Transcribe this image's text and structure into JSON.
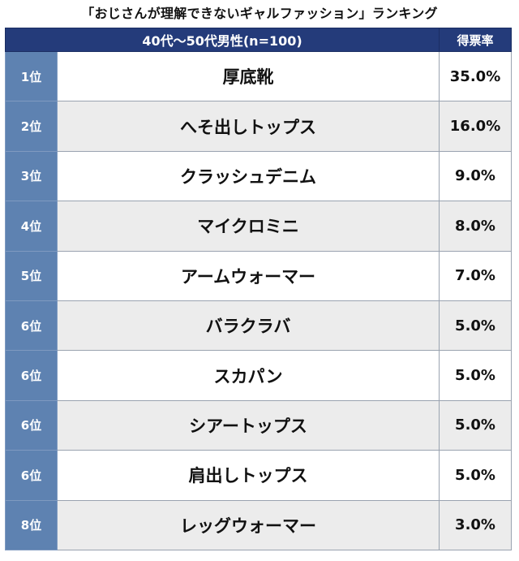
{
  "title": "「おじさんが理解できないギャルファッション」ランキング",
  "header": {
    "group_label": "40代〜50代男性(n=100)",
    "pct_label": "得票率"
  },
  "chart_data": {
    "type": "table",
    "columns": [
      "40代〜50代男性(n=100)",
      "得票率"
    ],
    "rows": [
      {
        "rank": "1位",
        "item": "厚底靴",
        "pct": "35.0%"
      },
      {
        "rank": "2位",
        "item": "へそ出しトップス",
        "pct": "16.0%"
      },
      {
        "rank": "3位",
        "item": "クラッシュデニム",
        "pct": "9.0%"
      },
      {
        "rank": "4位",
        "item": "マイクロミニ",
        "pct": "8.0%"
      },
      {
        "rank": "5位",
        "item": "アームウォーマー",
        "pct": "7.0%"
      },
      {
        "rank": "6位",
        "item": "バラクラバ",
        "pct": "5.0%"
      },
      {
        "rank": "6位",
        "item": "スカパン",
        "pct": "5.0%"
      },
      {
        "rank": "6位",
        "item": "シアートップス",
        "pct": "5.0%"
      },
      {
        "rank": "6位",
        "item": "肩出しトップス",
        "pct": "5.0%"
      },
      {
        "rank": "8位",
        "item": "レッグウォーマー",
        "pct": "3.0%"
      }
    ]
  },
  "colors": {
    "header_bg": "#243b7a",
    "rank_bg": "#5e82b1",
    "stripe_bg": "#ececec"
  }
}
